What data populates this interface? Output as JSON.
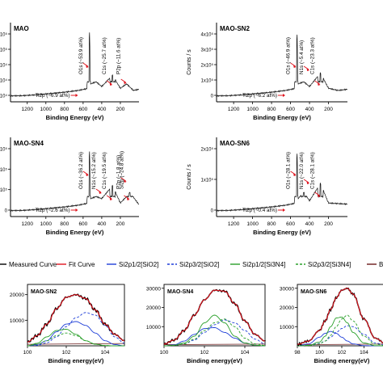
{
  "colors": {
    "measured": "#000000",
    "fit": "#e0141e",
    "sio2": "#1f3fd8",
    "si3n4": "#2aa02a",
    "annotation": "#1a3a8c",
    "arrow": "#e0141e",
    "survey_line": "#111111"
  },
  "legend": {
    "items": [
      {
        "label": "Measured Curve",
        "color": "#000000",
        "dash": false,
        "key": "measured"
      },
      {
        "label": "Fit Curve",
        "color": "#e0141e",
        "dash": false,
        "key": "fit"
      },
      {
        "label": "Si2p1/2[SiO2]",
        "color": "#1f3fd8",
        "dash": false,
        "key": "sio2_12"
      },
      {
        "label": "Si2p3/2[SiO2]",
        "color": "#1f3fd8",
        "dash": true,
        "key": "sio2_32"
      },
      {
        "label": "Si2p1/2[Si3N4]",
        "color": "#2aa02a",
        "dash": false,
        "key": "si3n4_12"
      },
      {
        "label": "Si2p3/2[Si3N4]",
        "color": "#2aa02a",
        "dash": true,
        "key": "si3n4_32"
      },
      {
        "label": "Ba",
        "color": "#6b1a1a",
        "dash": false,
        "key": "background"
      }
    ]
  },
  "chart_data": [
    {
      "type": "line",
      "title": "MAO",
      "xlabel": "Binding Energy (eV)",
      "ylabel": "",
      "xlim": [
        1380,
        0
      ],
      "xticks": [
        1200,
        1000,
        800,
        600,
        400,
        200
      ],
      "yticks": [
        "2x10⁵",
        "1x10⁵",
        "5x10⁴",
        "4x10⁴",
        "3x10⁴"
      ],
      "x": [
        1380,
        1250,
        1100,
        950,
        800,
        650,
        560,
        531,
        520,
        460,
        400,
        285,
        200,
        133,
        60,
        5
      ],
      "y": [
        5,
        6,
        10,
        16,
        22,
        30,
        38,
        300,
        60,
        70,
        48,
        100,
        40,
        60,
        30,
        35
      ],
      "annotations": [
        "O1s (~53.9 at%)",
        "C1s (~25.7 at%)",
        "P2p (~11.6 at%)",
        "Ti2p (~6.9 at%)"
      ]
    },
    {
      "type": "line",
      "title": "MAO-SN2",
      "xlabel": "Binding Energy (eV)",
      "ylabel": "Counts / s",
      "xlim": [
        1380,
        0
      ],
      "xticks": [
        1200,
        1000,
        800,
        600,
        400,
        200
      ],
      "yticks": [
        "4x10⁵",
        "3x10⁵",
        "2x10⁵",
        "1x10⁵",
        "0"
      ],
      "x": [
        1380,
        1250,
        1100,
        950,
        800,
        650,
        560,
        531,
        520,
        460,
        400,
        285,
        200,
        100,
        5
      ],
      "y": [
        5,
        6,
        10,
        16,
        22,
        30,
        38,
        290,
        60,
        70,
        48,
        110,
        40,
        30,
        35
      ],
      "annotations": [
        "O1s (~46.9 at%)",
        "N1s (~5.4 at%)",
        "C1s (~23.3 at%)",
        "Ti2p (~6.2 at%)"
      ]
    },
    {
      "type": "line",
      "title": "MAO-SN4",
      "xlabel": "Binding Energy (eV)",
      "ylabel": "",
      "xlim": [
        1380,
        0
      ],
      "xticks": [
        1200,
        1000,
        800,
        600,
        400,
        200
      ],
      "yticks": [
        "3x10⁵",
        "2x10⁵",
        "1x10⁵",
        "0"
      ],
      "x": [
        1380,
        1250,
        1100,
        950,
        800,
        650,
        560,
        531,
        520,
        460,
        400,
        285,
        200,
        133,
        100,
        5
      ],
      "y": [
        5,
        6,
        10,
        16,
        22,
        30,
        38,
        280,
        60,
        70,
        60,
        120,
        40,
        70,
        90,
        35
      ],
      "annotations": [
        "O1s (~36.2 at%)",
        "N1s (~15.2 at%)",
        "C1s (~19.5 at%)",
        "P2p (~1.8 at%)",
        "Si2p (~24.8 at%)",
        "Ti2p (~2.6 at%)"
      ]
    },
    {
      "type": "line",
      "title": "MAO-SN6",
      "xlabel": "Binding Energy (eV)",
      "ylabel": "Counts / s",
      "xlim": [
        1380,
        0
      ],
      "xticks": [
        1200,
        1000,
        800,
        600,
        400,
        200
      ],
      "yticks": [
        "2x10⁵",
        "1x10⁵",
        "0"
      ],
      "x": [
        1380,
        1250,
        1100,
        950,
        800,
        650,
        560,
        531,
        520,
        460,
        400,
        285,
        200,
        5
      ],
      "y": [
        5,
        6,
        10,
        16,
        22,
        30,
        38,
        270,
        60,
        90,
        50,
        130,
        40,
        35
      ],
      "annotations": [
        "O1s (~28.1 at%)",
        "N1s (~22.0 at%)",
        "C1s (~28.1 at%)",
        "Ti2p (~0.4 at%)"
      ]
    },
    {
      "type": "line",
      "title": "MAO-SN2",
      "xlabel": "Binding energy(eV)",
      "ylabel": "",
      "xlim": [
        100,
        105
      ],
      "ylim": [
        0,
        24000
      ],
      "xticks": [
        100,
        102,
        104
      ],
      "yticks": [
        10000,
        20000
      ],
      "x": [
        100,
        100.5,
        101,
        101.5,
        102,
        102.5,
        103,
        103.5,
        104,
        104.5,
        105
      ],
      "series": [
        {
          "key": "measured",
          "values": [
            1500,
            4000,
            8500,
            14500,
            19000,
            20000,
            18500,
            14000,
            8500,
            4500,
            2000
          ]
        },
        {
          "key": "fit",
          "values": [
            1500,
            4000,
            8500,
            14500,
            19000,
            20000,
            18500,
            14000,
            8500,
            4500,
            2000
          ]
        },
        {
          "key": "sio2_12",
          "values": [
            0,
            500,
            2000,
            5500,
            8500,
            9500,
            8000,
            5000,
            2000,
            500,
            0
          ]
        },
        {
          "key": "sio2_32",
          "values": [
            0,
            200,
            1200,
            3500,
            7500,
            11000,
            13000,
            12000,
            8000,
            3500,
            1000
          ]
        },
        {
          "key": "si3n4_12",
          "values": [
            0,
            1000,
            3500,
            6000,
            6500,
            4500,
            2000,
            600,
            100,
            0,
            0
          ]
        },
        {
          "key": "si3n4_32",
          "values": [
            0,
            600,
            2000,
            4000,
            5000,
            4000,
            2000,
            700,
            100,
            0,
            0
          ]
        }
      ]
    },
    {
      "type": "line",
      "title": "MAO-SN4",
      "xlabel": "Binding energy(eV)",
      "ylabel": "",
      "xlim": [
        100,
        105
      ],
      "ylim": [
        0,
        32000
      ],
      "xticks": [
        100,
        102,
        104
      ],
      "yticks": [
        10000,
        20000,
        30000
      ],
      "x": [
        100,
        100.5,
        101,
        101.5,
        102,
        102.5,
        103,
        103.5,
        104,
        104.5,
        105
      ],
      "series": [
        {
          "key": "measured",
          "values": [
            1000,
            3000,
            8000,
            16000,
            24000,
            29000,
            28500,
            22000,
            13000,
            6000,
            2500
          ]
        },
        {
          "key": "fit",
          "values": [
            1000,
            3000,
            8000,
            16000,
            24000,
            29000,
            28500,
            22000,
            13000,
            6000,
            2500
          ]
        },
        {
          "key": "sio2_12",
          "values": [
            0,
            500,
            2500,
            6000,
            9000,
            9500,
            7000,
            4000,
            1500,
            300,
            0
          ]
        },
        {
          "key": "sio2_32",
          "values": [
            0,
            200,
            1000,
            3000,
            7000,
            11000,
            13500,
            12000,
            8000,
            3500,
            1000
          ]
        },
        {
          "key": "si3n4_12",
          "values": [
            0,
            300,
            1500,
            5000,
            12000,
            16000,
            12000,
            5000,
            1500,
            300,
            0
          ]
        },
        {
          "key": "si3n4_32",
          "values": [
            0,
            200,
            1000,
            3500,
            8000,
            12000,
            14000,
            10000,
            4000,
            1000,
            200
          ]
        }
      ]
    },
    {
      "type": "line",
      "title": "MAO-SN6",
      "xlabel": "Binding energy(eV)",
      "ylabel": "",
      "xlim": [
        98,
        106
      ],
      "ylim": [
        0,
        32000
      ],
      "xticks": [
        98,
        100,
        102,
        104
      ],
      "yticks": [
        10000,
        20000,
        30000
      ],
      "x": [
        98,
        99,
        100,
        100.5,
        101,
        101.5,
        102,
        102.5,
        103,
        104,
        105,
        106
      ],
      "series": [
        {
          "key": "measured",
          "values": [
            800,
            2500,
            8000,
            13000,
            19000,
            25000,
            29000,
            30000,
            27000,
            14000,
            4000,
            1000
          ]
        },
        {
          "key": "fit",
          "values": [
            800,
            2500,
            8000,
            13000,
            19000,
            25000,
            29000,
            30000,
            27000,
            14000,
            4000,
            1000
          ]
        },
        {
          "key": "sio2_12",
          "values": [
            0,
            1000,
            4500,
            6500,
            7500,
            6500,
            4500,
            2500,
            1000,
            100,
            0,
            0
          ]
        },
        {
          "key": "sio2_32",
          "values": [
            0,
            300,
            1200,
            2500,
            4500,
            7000,
            9000,
            10500,
            10000,
            6000,
            1500,
            200
          ]
        },
        {
          "key": "si3n4_12",
          "values": [
            0,
            200,
            2000,
            5000,
            10000,
            14500,
            15000,
            12000,
            7000,
            1500,
            100,
            0
          ]
        },
        {
          "key": "si3n4_32",
          "values": [
            0,
            100,
            1000,
            2500,
            5500,
            10000,
            14000,
            16000,
            13000,
            5000,
            800,
            100
          ]
        }
      ]
    }
  ]
}
